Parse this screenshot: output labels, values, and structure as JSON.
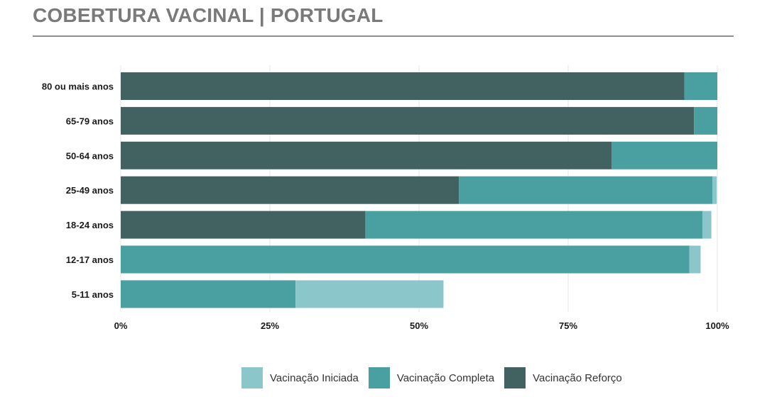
{
  "title": "COBERTURA VACINAL | PORTUGAL",
  "chart_data": {
    "type": "bar",
    "orientation": "horizontal",
    "stacked": true,
    "title": "COBERTURA VACINAL | PORTUGAL",
    "xlabel": "",
    "ylabel": "",
    "categories": [
      "80 ou mais anos",
      "65-79 anos",
      "50-64 anos",
      "25-49 anos",
      "18-24 anos",
      "12-17 anos",
      "5-11 anos"
    ],
    "x_ticks": [
      "0%",
      "25%",
      "50%",
      "75%",
      "100%"
    ],
    "xlim": [
      0,
      100
    ],
    "grid": "vertical",
    "legend_position": "bottom",
    "series": [
      {
        "name": "Vacinação Reforço",
        "color": "#426262",
        "values": [
          94.5,
          96.1,
          82.3,
          56.7,
          41.0,
          0,
          0
        ]
      },
      {
        "name": "Vacinação Completa",
        "color": "#4a9fa1",
        "values": [
          5.5,
          3.9,
          17.7,
          42.5,
          56.5,
          95.3,
          29.3
        ]
      },
      {
        "name": "Vacinação Iniciada",
        "color": "#8bc6cb",
        "values": [
          0,
          0,
          0,
          0.7,
          1.5,
          1.9,
          24.8
        ]
      }
    ]
  },
  "legend": [
    {
      "label": "Vacinação Iniciada",
      "color": "#8bc6cb"
    },
    {
      "label": "Vacinação Completa",
      "color": "#4a9fa1"
    },
    {
      "label": "Vacinação Reforço",
      "color": "#426262"
    }
  ]
}
